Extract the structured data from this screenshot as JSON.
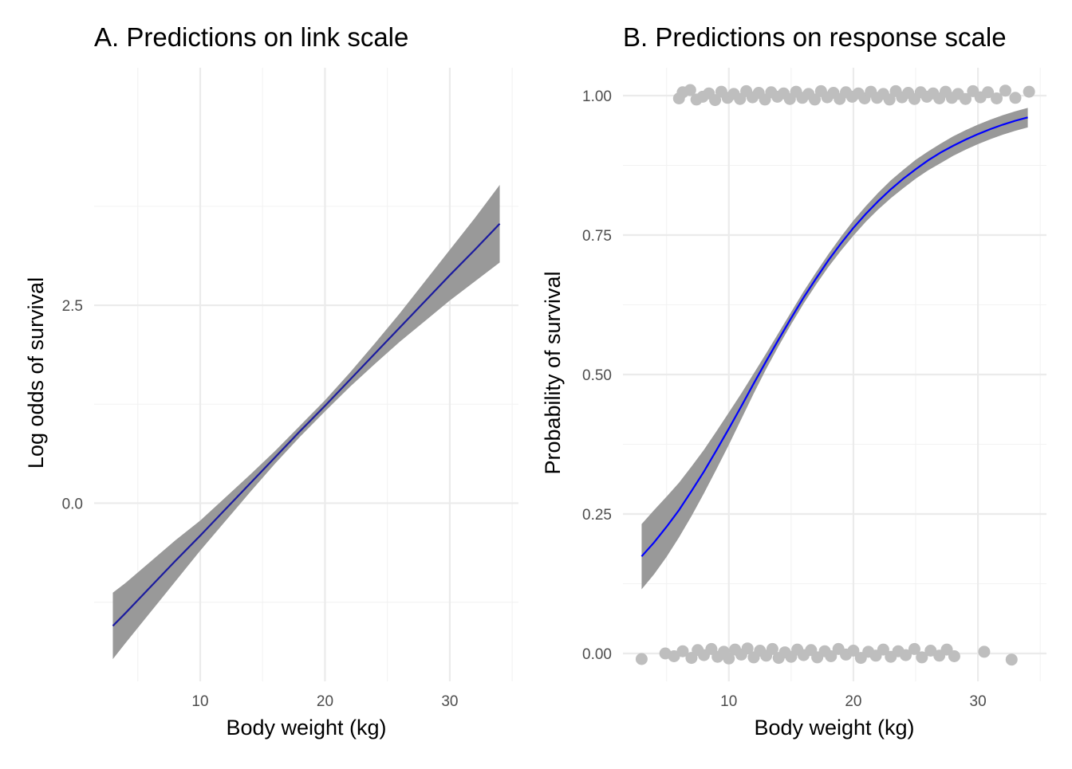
{
  "colors": {
    "ribbon": "#999999",
    "line_link": "#1b1b9e",
    "line_response": "#0000ff",
    "points": "#bebebe",
    "grid_major": "#ebebeb",
    "grid_minor": "#f2f2f2"
  },
  "chart_data": [
    {
      "type": "line",
      "title": "A. Predictions on link scale",
      "xlabel": "Body weight (kg)",
      "ylabel": "Log odds of survival",
      "xlim": [
        1.5,
        35.5
      ],
      "ylim": [
        -2.25,
        5.5
      ],
      "x_ticks": [
        10,
        20,
        30
      ],
      "x_tick_labels": [
        "10",
        "20",
        "30"
      ],
      "x_minor_ticks": [
        5,
        15,
        25,
        35
      ],
      "y_ticks": [
        0,
        2.5
      ],
      "y_tick_labels": [
        "0.0",
        "2.5"
      ],
      "y_minor_ticks": [
        -1.25,
        1.25,
        3.75
      ],
      "grid": true,
      "series": [
        {
          "x": [
            3,
            4,
            6,
            8,
            10,
            12,
            14,
            16,
            18,
            20,
            22,
            24,
            26,
            28,
            30,
            32,
            34
          ],
          "y": [
            -1.55,
            -1.39,
            -1.06,
            -0.73,
            -0.41,
            -0.08,
            0.25,
            0.58,
            0.91,
            1.23,
            1.56,
            1.89,
            2.22,
            2.55,
            2.88,
            3.2,
            3.53
          ],
          "lower": [
            -1.97,
            -1.77,
            -1.38,
            -0.99,
            -0.6,
            -0.23,
            0.14,
            0.5,
            0.84,
            1.16,
            1.47,
            1.76,
            2.04,
            2.3,
            2.56,
            2.8,
            3.04
          ],
          "upper": [
            -1.13,
            -1.01,
            -0.74,
            -0.47,
            -0.22,
            0.07,
            0.36,
            0.66,
            0.98,
            1.3,
            1.65,
            2.02,
            2.4,
            2.8,
            3.2,
            3.6,
            4.02
          ]
        }
      ]
    },
    {
      "type": "line",
      "title": "B. Predictions on response scale",
      "xlabel": "Body weight (kg)",
      "ylabel": "Probability of survival",
      "xlim": [
        1.5,
        35.5
      ],
      "ylim": [
        -0.05,
        1.05
      ],
      "x_ticks": [
        10,
        20,
        30
      ],
      "x_tick_labels": [
        "10",
        "20",
        "30"
      ],
      "x_minor_ticks": [
        5,
        15,
        25,
        35
      ],
      "y_ticks": [
        0,
        0.25,
        0.5,
        0.75,
        1
      ],
      "y_tick_labels": [
        "0.00",
        "0.25",
        "0.50",
        "0.75",
        "1.00"
      ],
      "y_minor_ticks": [
        0.125,
        0.375,
        0.625,
        0.875
      ],
      "grid": true,
      "series": [
        {
          "x": [
            3,
            4,
            5,
            6,
            7,
            8,
            9,
            10,
            11,
            12,
            13,
            14,
            15,
            16,
            17,
            18,
            19,
            20,
            21,
            22,
            23,
            24,
            25,
            26,
            27,
            28,
            29,
            30,
            31,
            32,
            33,
            34
          ],
          "y": [
            0.174,
            0.199,
            0.227,
            0.257,
            0.291,
            0.326,
            0.364,
            0.403,
            0.443,
            0.484,
            0.524,
            0.563,
            0.601,
            0.638,
            0.672,
            0.705,
            0.735,
            0.763,
            0.788,
            0.811,
            0.832,
            0.851,
            0.868,
            0.884,
            0.898,
            0.91,
            0.921,
            0.931,
            0.94,
            0.948,
            0.955,
            0.961
          ],
          "lower": [
            0.115,
            0.142,
            0.173,
            0.208,
            0.246,
            0.287,
            0.33,
            0.374,
            0.42,
            0.466,
            0.51,
            0.551,
            0.59,
            0.627,
            0.661,
            0.693,
            0.722,
            0.749,
            0.774,
            0.796,
            0.816,
            0.834,
            0.851,
            0.866,
            0.879,
            0.892,
            0.903,
            0.913,
            0.922,
            0.93,
            0.937,
            0.943
          ],
          "upper": [
            0.232,
            0.257,
            0.281,
            0.306,
            0.335,
            0.365,
            0.398,
            0.432,
            0.466,
            0.502,
            0.538,
            0.575,
            0.612,
            0.649,
            0.683,
            0.716,
            0.747,
            0.776,
            0.802,
            0.826,
            0.848,
            0.867,
            0.885,
            0.9,
            0.914,
            0.927,
            0.938,
            0.948,
            0.957,
            0.965,
            0.972,
            0.978
          ]
        }
      ],
      "points": [
        {
          "x": 3.0,
          "y": -0.01
        },
        {
          "x": 4.9,
          "y": 0.0
        },
        {
          "x": 5.6,
          "y": -0.005
        },
        {
          "x": 6.3,
          "y": 0.004
        },
        {
          "x": 7.0,
          "y": -0.008
        },
        {
          "x": 7.5,
          "y": 0.006
        },
        {
          "x": 8.0,
          "y": -0.003
        },
        {
          "x": 8.6,
          "y": 0.008
        },
        {
          "x": 9.1,
          "y": -0.006
        },
        {
          "x": 9.6,
          "y": 0.003
        },
        {
          "x": 10.0,
          "y": -0.009
        },
        {
          "x": 10.5,
          "y": 0.007
        },
        {
          "x": 11.0,
          "y": -0.002
        },
        {
          "x": 11.5,
          "y": 0.009
        },
        {
          "x": 12.0,
          "y": -0.007
        },
        {
          "x": 12.5,
          "y": 0.005
        },
        {
          "x": 13.0,
          "y": -0.004
        },
        {
          "x": 13.5,
          "y": 0.008
        },
        {
          "x": 14.0,
          "y": -0.008
        },
        {
          "x": 14.5,
          "y": 0.002
        },
        {
          "x": 15.0,
          "y": -0.006
        },
        {
          "x": 15.5,
          "y": 0.007
        },
        {
          "x": 16.0,
          "y": -0.003
        },
        {
          "x": 16.6,
          "y": 0.006
        },
        {
          "x": 17.1,
          "y": -0.007
        },
        {
          "x": 17.7,
          "y": 0.004
        },
        {
          "x": 18.2,
          "y": -0.005
        },
        {
          "x": 18.8,
          "y": 0.008
        },
        {
          "x": 19.4,
          "y": -0.002
        },
        {
          "x": 20.0,
          "y": 0.005
        },
        {
          "x": 20.6,
          "y": -0.008
        },
        {
          "x": 21.2,
          "y": 0.003
        },
        {
          "x": 21.8,
          "y": -0.004
        },
        {
          "x": 22.4,
          "y": 0.007
        },
        {
          "x": 23.0,
          "y": -0.006
        },
        {
          "x": 23.6,
          "y": 0.004
        },
        {
          "x": 24.2,
          "y": -0.003
        },
        {
          "x": 24.9,
          "y": 0.008
        },
        {
          "x": 25.5,
          "y": -0.007
        },
        {
          "x": 26.2,
          "y": 0.005
        },
        {
          "x": 26.9,
          "y": -0.004
        },
        {
          "x": 27.5,
          "y": 0.007
        },
        {
          "x": 28.1,
          "y": -0.005
        },
        {
          "x": 30.5,
          "y": 0.003
        },
        {
          "x": 32.7,
          "y": -0.011
        },
        {
          "x": 6.0,
          "y": 0.995
        },
        {
          "x": 6.3,
          "y": 1.006
        },
        {
          "x": 6.9,
          "y": 1.01
        },
        {
          "x": 7.4,
          "y": 0.993
        },
        {
          "x": 7.9,
          "y": 0.998
        },
        {
          "x": 8.4,
          "y": 1.004
        },
        {
          "x": 8.9,
          "y": 0.992
        },
        {
          "x": 9.4,
          "y": 1.007
        },
        {
          "x": 9.9,
          "y": 0.996
        },
        {
          "x": 10.4,
          "y": 1.003
        },
        {
          "x": 10.9,
          "y": 0.994
        },
        {
          "x": 11.4,
          "y": 1.008
        },
        {
          "x": 11.9,
          "y": 0.997
        },
        {
          "x": 12.4,
          "y": 1.005
        },
        {
          "x": 12.9,
          "y": 0.993
        },
        {
          "x": 13.4,
          "y": 1.006
        },
        {
          "x": 13.9,
          "y": 0.998
        },
        {
          "x": 14.4,
          "y": 1.004
        },
        {
          "x": 14.9,
          "y": 0.994
        },
        {
          "x": 15.4,
          "y": 1.007
        },
        {
          "x": 15.9,
          "y": 0.996
        },
        {
          "x": 16.4,
          "y": 1.003
        },
        {
          "x": 16.9,
          "y": 0.993
        },
        {
          "x": 17.4,
          "y": 1.008
        },
        {
          "x": 17.9,
          "y": 0.997
        },
        {
          "x": 18.4,
          "y": 1.005
        },
        {
          "x": 18.9,
          "y": 0.994
        },
        {
          "x": 19.4,
          "y": 1.006
        },
        {
          "x": 19.9,
          "y": 0.998
        },
        {
          "x": 20.4,
          "y": 1.004
        },
        {
          "x": 20.9,
          "y": 0.995
        },
        {
          "x": 21.4,
          "y": 1.007
        },
        {
          "x": 21.9,
          "y": 0.996
        },
        {
          "x": 22.4,
          "y": 1.003
        },
        {
          "x": 22.9,
          "y": 0.993
        },
        {
          "x": 23.4,
          "y": 1.008
        },
        {
          "x": 23.9,
          "y": 0.997
        },
        {
          "x": 24.4,
          "y": 1.005
        },
        {
          "x": 24.9,
          "y": 0.994
        },
        {
          "x": 25.4,
          "y": 1.006
        },
        {
          "x": 25.9,
          "y": 0.998
        },
        {
          "x": 26.4,
          "y": 1.004
        },
        {
          "x": 26.9,
          "y": 0.995
        },
        {
          "x": 27.4,
          "y": 1.007
        },
        {
          "x": 27.9,
          "y": 0.996
        },
        {
          "x": 28.4,
          "y": 1.003
        },
        {
          "x": 29.0,
          "y": 0.994
        },
        {
          "x": 29.6,
          "y": 1.008
        },
        {
          "x": 30.2,
          "y": 0.997
        },
        {
          "x": 30.8,
          "y": 1.006
        },
        {
          "x": 31.5,
          "y": 0.995
        },
        {
          "x": 32.2,
          "y": 1.009
        },
        {
          "x": 33.0,
          "y": 0.996
        },
        {
          "x": 34.1,
          "y": 1.007
        }
      ]
    }
  ]
}
